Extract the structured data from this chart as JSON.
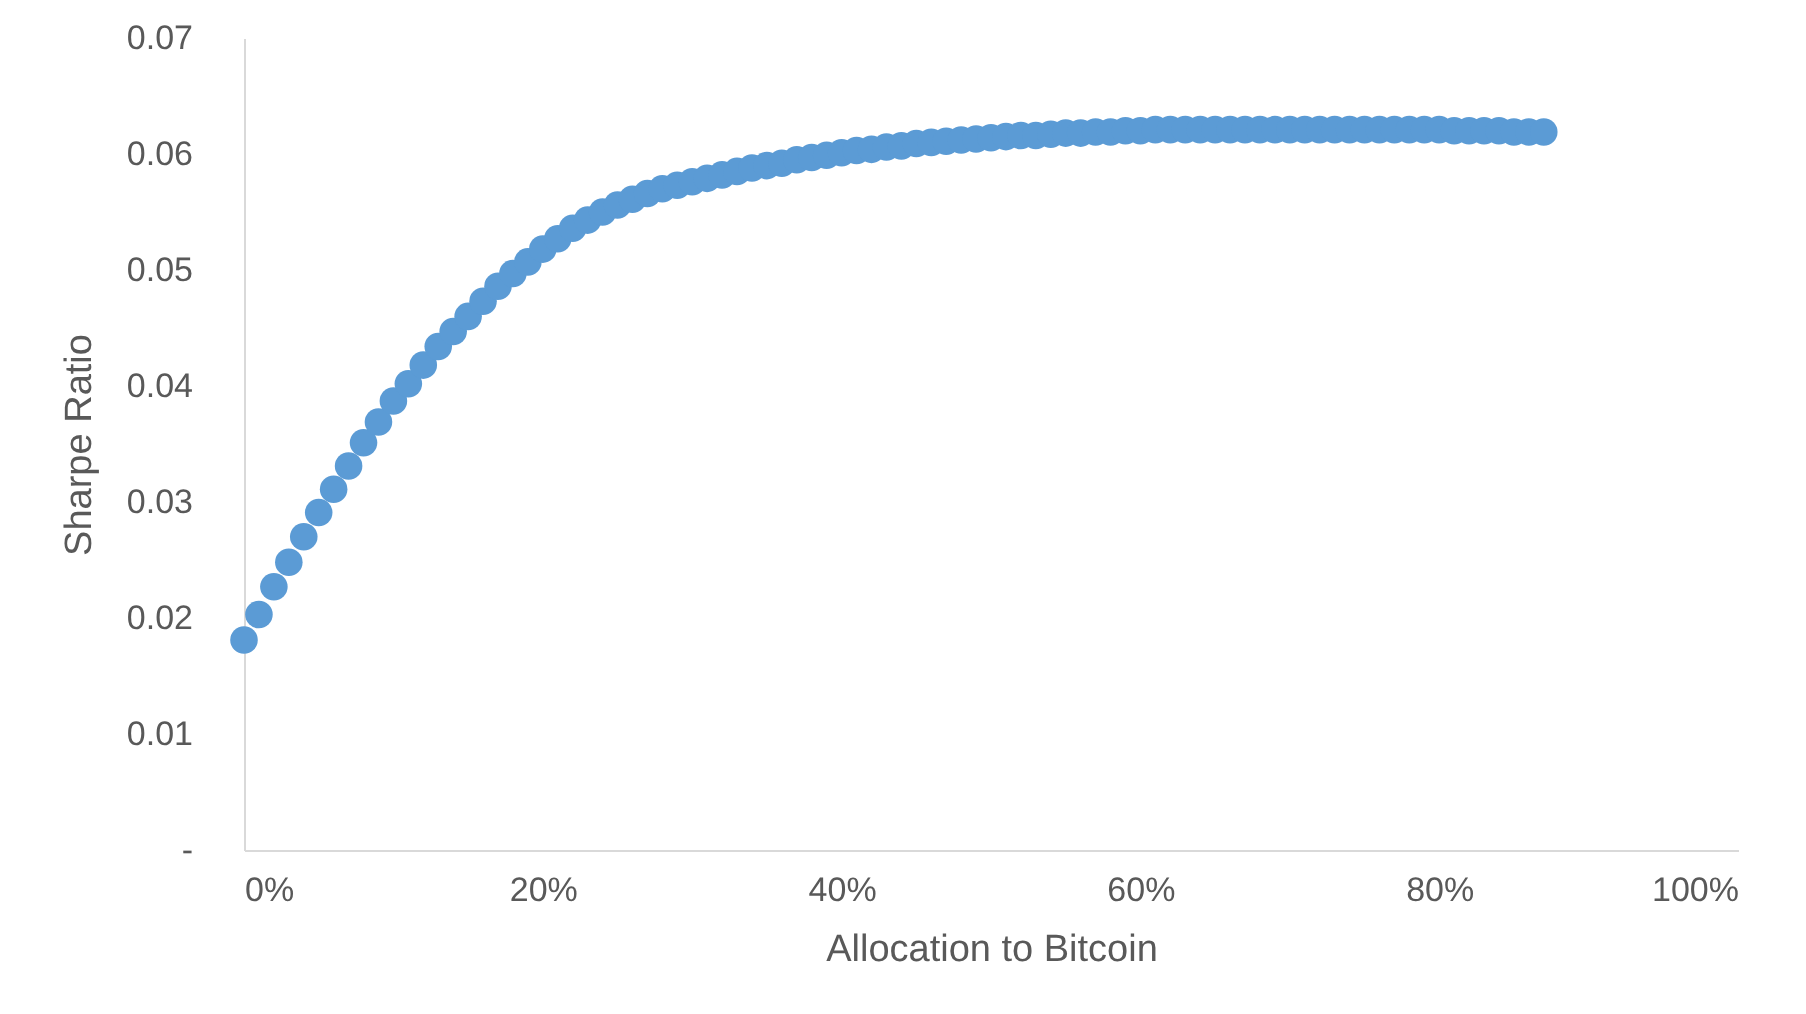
{
  "chart_data": {
    "type": "scatter",
    "xlabel": "Allocation to Bitcoin",
    "ylabel": "Sharpe Ratio",
    "x": [
      0,
      1,
      2,
      3,
      4,
      5,
      6,
      7,
      8,
      9,
      10,
      11,
      12,
      13,
      14,
      15,
      16,
      17,
      18,
      19,
      20,
      21,
      22,
      23,
      24,
      25,
      26,
      27,
      28,
      29,
      30,
      31,
      32,
      33,
      34,
      35,
      36,
      37,
      38,
      39,
      40,
      41,
      42,
      43,
      44,
      45,
      46,
      47,
      48,
      49,
      50,
      51,
      52,
      53,
      54,
      55,
      56,
      57,
      58,
      59,
      60,
      61,
      62,
      63,
      64,
      65,
      66,
      67,
      68,
      69,
      70,
      71,
      72,
      73,
      74,
      75,
      76,
      77,
      78,
      79,
      80,
      81,
      82,
      83,
      84,
      85,
      86,
      87
    ],
    "series": [
      {
        "color": "#5b9bd5",
        "values": [
          0.0181,
          0.0203,
          0.0227,
          0.0248,
          0.027,
          0.0291,
          0.0311,
          0.0331,
          0.0351,
          0.0369,
          0.0387,
          0.0402,
          0.0418,
          0.0434,
          0.0447,
          0.046,
          0.0473,
          0.0486,
          0.0497,
          0.0507,
          0.0518,
          0.0527,
          0.0536,
          0.0543,
          0.055,
          0.0556,
          0.0561,
          0.0566,
          0.057,
          0.0573,
          0.0576,
          0.0579,
          0.0582,
          0.0585,
          0.0588,
          0.059,
          0.0592,
          0.0595,
          0.0597,
          0.0599,
          0.0601,
          0.0603,
          0.0604,
          0.0606,
          0.0607,
          0.0609,
          0.061,
          0.0611,
          0.0612,
          0.0613,
          0.0614,
          0.0615,
          0.0616,
          0.0616,
          0.0617,
          0.0618,
          0.0618,
          0.0619,
          0.0619,
          0.062,
          0.062,
          0.0621,
          0.0621,
          0.0621,
          0.0621,
          0.0621,
          0.0621,
          0.0621,
          0.0621,
          0.0621,
          0.0621,
          0.0621,
          0.0621,
          0.0621,
          0.0621,
          0.0621,
          0.0621,
          0.0621,
          0.0621,
          0.0621,
          0.0621,
          0.062,
          0.062,
          0.062,
          0.062,
          0.0619,
          0.0619,
          0.0619
        ]
      }
    ],
    "xlim": [
      0,
      100
    ],
    "xticks": [
      {
        "value": 0,
        "label": "0%"
      },
      {
        "value": 20,
        "label": "20%"
      },
      {
        "value": 40,
        "label": "40%"
      },
      {
        "value": 60,
        "label": "60%"
      },
      {
        "value": 80,
        "label": "80%"
      },
      {
        "value": 100,
        "label": "100%"
      }
    ],
    "ylim": [
      0,
      0.07
    ],
    "yticks": [
      {
        "value": 0,
        "label": "-"
      },
      0.01,
      0.02,
      0.03,
      0.04,
      0.05,
      0.06,
      0.07
    ],
    "grid": false,
    "marker": "circle"
  }
}
